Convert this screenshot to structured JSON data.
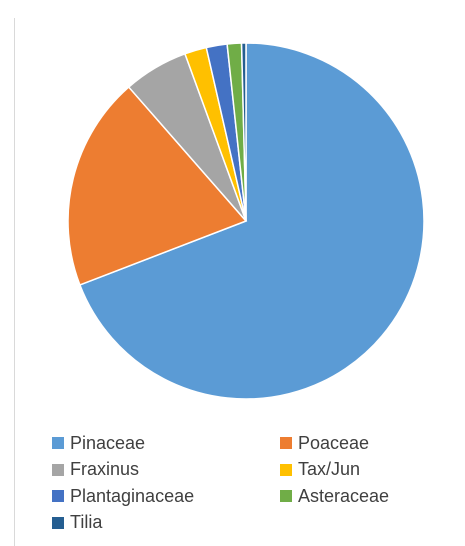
{
  "chart_data": {
    "type": "pie",
    "title": "",
    "slices": [
      {
        "label": "Pinaceae",
        "value": 69.5,
        "color": "#5b9bd5"
      },
      {
        "label": "Poaceae",
        "value": 19.5,
        "color": "#ed7d31"
      },
      {
        "label": "Fraxinus",
        "value": 5.9,
        "color": "#a5a5a5"
      },
      {
        "label": "Tax/Jun",
        "value": 2.0,
        "color": "#ffc000"
      },
      {
        "label": "Plantaginaceae",
        "value": 1.9,
        "color": "#4472c4"
      },
      {
        "label": "Asteraceae",
        "value": 1.3,
        "color": "#70ad47"
      },
      {
        "label": "Tilia",
        "value": 0.4,
        "color": "#255e91"
      }
    ],
    "legend_position": "bottom",
    "start_angle_deg": 0,
    "direction": "clockwise"
  }
}
